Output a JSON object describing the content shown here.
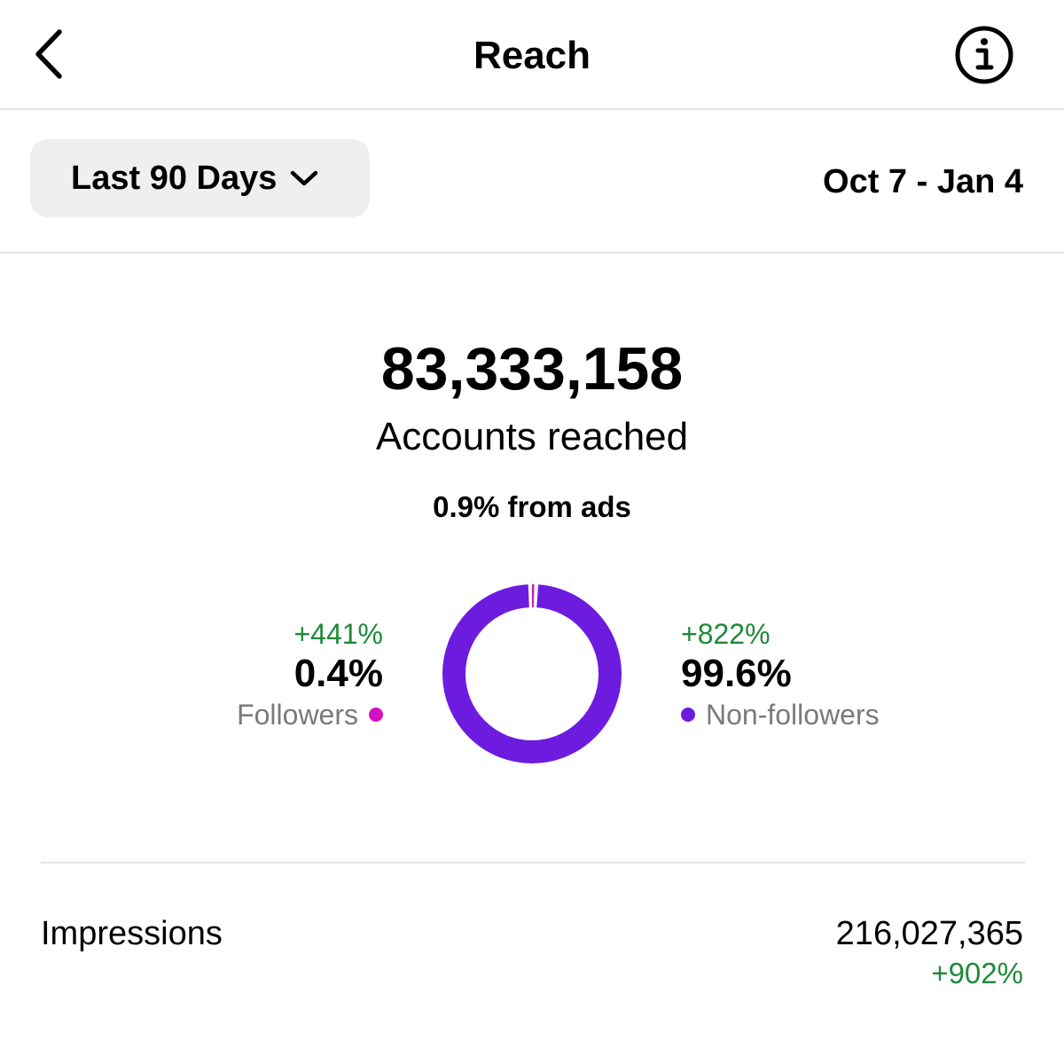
{
  "header": {
    "title": "Reach",
    "back_icon": "chevron-left-icon",
    "info_icon": "info-icon"
  },
  "range": {
    "selected": "Last 90 Days",
    "dates": "Oct 7 - Jan 4"
  },
  "summary": {
    "accounts_reached": "83,333,158",
    "caption": "Accounts reached",
    "ads_note": "0.9% from ads"
  },
  "segments": {
    "followers": {
      "change": "+441%",
      "percent": "0.4%",
      "label": "Followers",
      "color": "#d60fc1",
      "value": 0.4
    },
    "non_followers": {
      "change": "+822%",
      "percent": "99.6%",
      "label": "Non-followers",
      "color": "#6e1be0",
      "value": 99.6
    }
  },
  "impressions": {
    "label": "Impressions",
    "value": "216,027,365",
    "change": "+902%"
  },
  "colors": {
    "positive": "#1f8a3a",
    "muted": "#7a7a7a",
    "pill_bg": "#efefef"
  }
}
